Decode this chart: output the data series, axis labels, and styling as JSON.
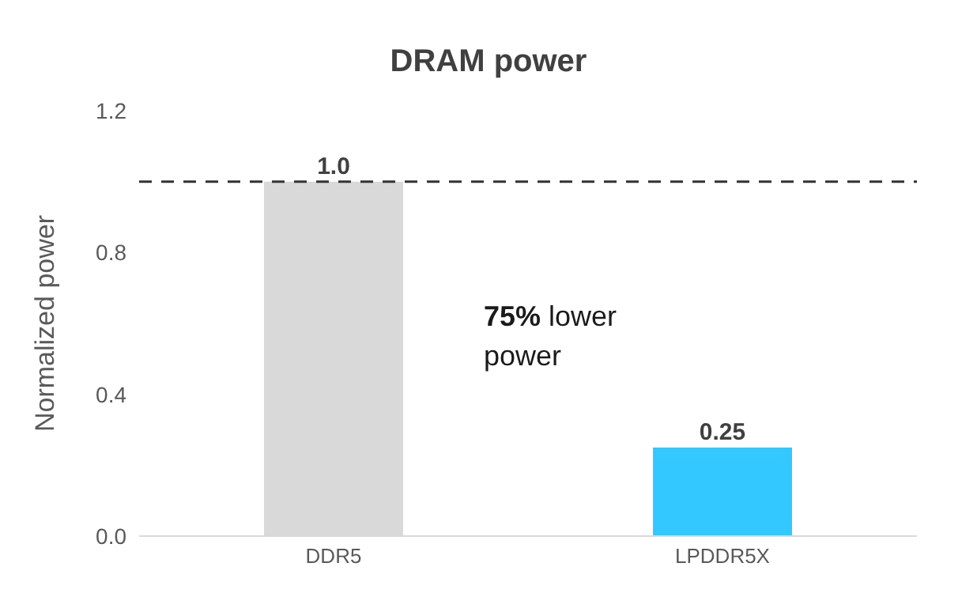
{
  "chart_data": {
    "type": "bar",
    "title": "DRAM power",
    "ylabel": "Normalized power",
    "categories": [
      "DDR5",
      "LPDDR5X"
    ],
    "values": [
      1.0,
      0.25
    ],
    "colors": [
      "#d9d9d9",
      "#33c8ff"
    ],
    "value_labels": [
      "1.0",
      "0.25"
    ],
    "ylim": [
      0,
      1.2
    ],
    "yticks": [
      {
        "value": 0,
        "label": "0.0"
      },
      {
        "value": 0.4,
        "label": "0.4"
      },
      {
        "value": 0.8,
        "label": "0.8"
      },
      {
        "value": 1.2,
        "label": "1.2"
      }
    ],
    "ref_lines": [
      {
        "axis": "y",
        "value": 1.0,
        "color": "#333333",
        "line_style": "dashed"
      }
    ],
    "annotations": [
      "75% lower power"
    ],
    "grid": false,
    "legend": false
  }
}
